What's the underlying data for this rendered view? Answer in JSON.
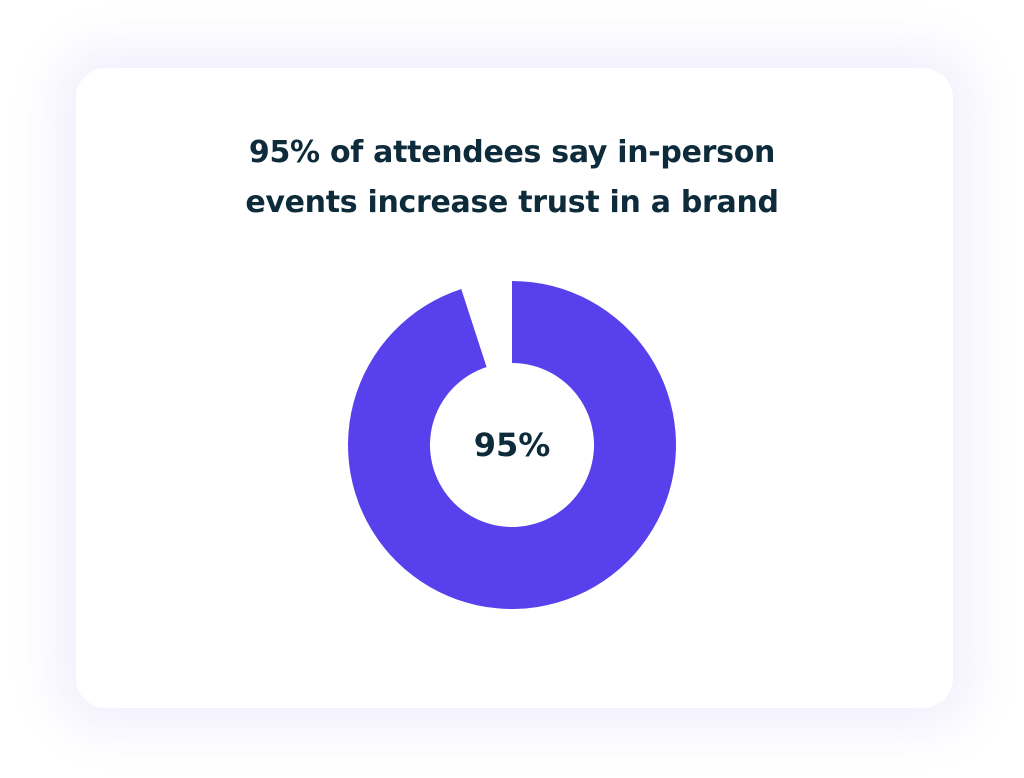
{
  "chart_data": {
    "type": "pie",
    "variant": "donut",
    "title_lines": [
      "95% of attendees say in-person",
      "events increase trust in a brand"
    ],
    "center_label": "95%",
    "slices": [
      {
        "label": "",
        "value": 95,
        "color": "#5841ec"
      },
      {
        "label": "",
        "value": 5,
        "color": "#ffffff"
      }
    ]
  }
}
